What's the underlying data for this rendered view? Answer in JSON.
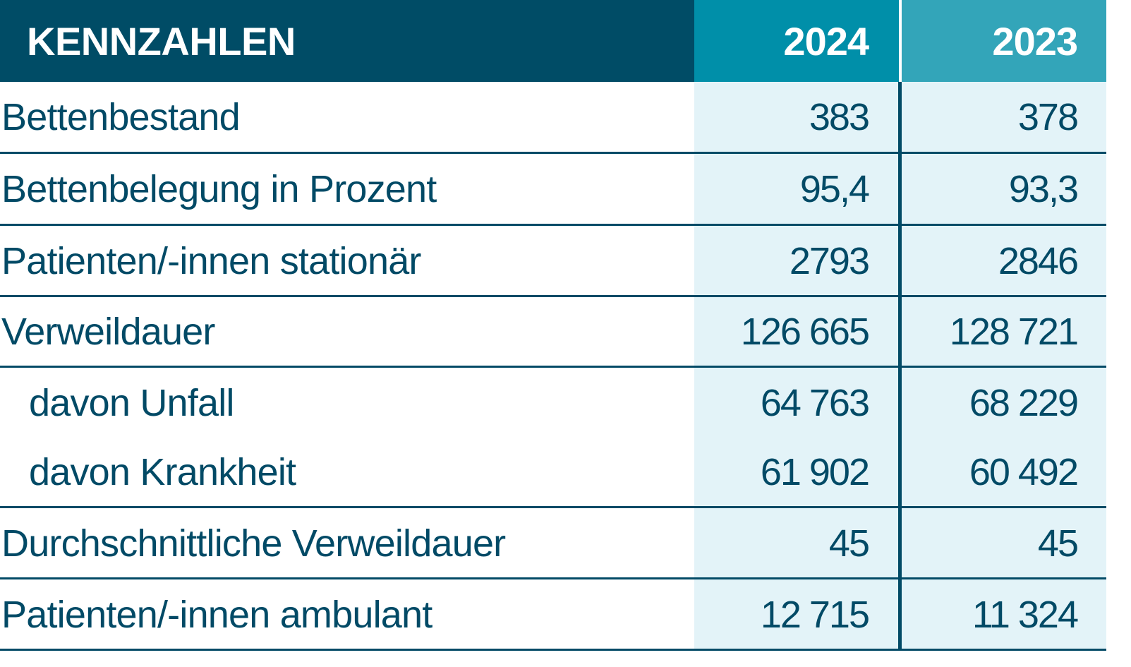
{
  "table": {
    "header": {
      "label": "KENNZAHLEN",
      "col_2024": "2024",
      "col_2023": "2023"
    },
    "rows": [
      {
        "label": "Bettenbestand",
        "v2024": "383",
        "v2023": "378"
      },
      {
        "label": "Bettenbelegung in Prozent",
        "v2024": "95,4",
        "v2023": "93,3"
      },
      {
        "label": "Patienten/-innen stationär",
        "v2024": "2793",
        "v2023": "2846"
      },
      {
        "label": "Verweildauer",
        "v2024": "126 665",
        "v2023": "128 721"
      },
      {
        "label": "davon Unfall",
        "v2024": "64 763",
        "v2023": "68 229"
      },
      {
        "label": "davon Krankheit",
        "v2024": "61 902",
        "v2023": "60 492"
      },
      {
        "label": "Durchschnittliche Verweildauer",
        "v2024": "45",
        "v2023": "45"
      },
      {
        "label": "Patienten/-innen ambulant",
        "v2024": "12 715",
        "v2023": "11 324"
      }
    ],
    "colors": {
      "header_label_bg": "#004c66",
      "header_2024_bg": "#008fa9",
      "header_2023_bg": "#33a5b9",
      "value_column_bg": "#e3f3f8",
      "text_and_rules": "#024a66"
    }
  }
}
